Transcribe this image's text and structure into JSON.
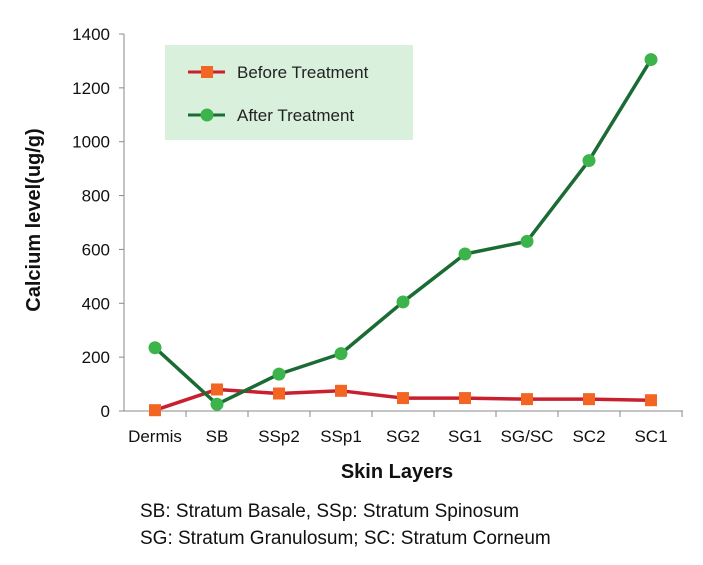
{
  "chart_data": {
    "type": "line",
    "xlabel": "Skin Layers",
    "ylabel": "Calcium level(ug/g)",
    "ylim": [
      0,
      1400
    ],
    "yticks": [
      0,
      200,
      400,
      600,
      800,
      1000,
      1200,
      1400
    ],
    "grid": false,
    "legend_position": "top-left",
    "categories": [
      "Dermis",
      "SB",
      "SSp2",
      "SSp1",
      "SG2",
      "SG1",
      "SG/SC",
      "SC2",
      "SC1"
    ],
    "series": [
      {
        "name": "Before Treatment",
        "color": "#c8202f",
        "marker_color": "#f26522",
        "marker": "square",
        "values": [
          3,
          80,
          65,
          75,
          48,
          48,
          44,
          44,
          40
        ]
      },
      {
        "name": "After Treatment",
        "color": "#1a6b34",
        "marker_color": "#3cb44b",
        "marker": "circle",
        "values": [
          235,
          25,
          137,
          213,
          405,
          583,
          630,
          930,
          1305
        ]
      }
    ],
    "legend_bg": "#d9f0dd"
  },
  "footnotes": [
    "SB: Stratum Basale, SSp: Stratum Spinosum",
    "SG: Stratum Granulosum; SC: Stratum Corneum"
  ]
}
